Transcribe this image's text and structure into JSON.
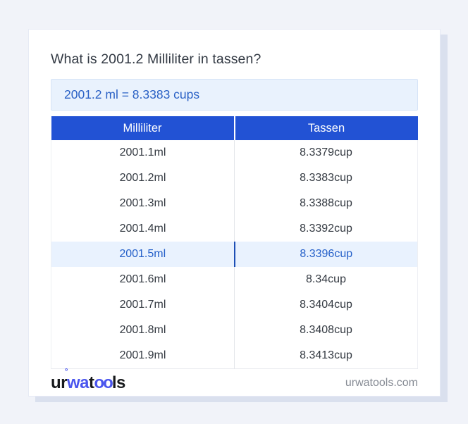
{
  "page": {
    "title": "What is 2001.2 Milliliter in tassen?",
    "result": "2001.2 ml = 8.3383 cups"
  },
  "table": {
    "headers": [
      "Milliliter",
      "Tassen"
    ],
    "rows": [
      {
        "ml": "2001.1ml",
        "cup": "8.3379cup"
      },
      {
        "ml": "2001.2ml",
        "cup": "8.3383cup"
      },
      {
        "ml": "2001.3ml",
        "cup": "8.3388cup"
      },
      {
        "ml": "2001.4ml",
        "cup": "8.3392cup"
      },
      {
        "ml": "2001.5ml",
        "cup": "8.3396cup"
      },
      {
        "ml": "2001.6ml",
        "cup": "8.34cup"
      },
      {
        "ml": "2001.7ml",
        "cup": "8.3404cup"
      },
      {
        "ml": "2001.8ml",
        "cup": "8.3408cup"
      },
      {
        "ml": "2001.9ml",
        "cup": "8.3413cup"
      }
    ],
    "highlighted_row_index": 4
  },
  "footer": {
    "logo": {
      "ur": "ur",
      "ring": "˚",
      "wa": "wa",
      "t": "t",
      "oo": "oo",
      "ls": "ls"
    },
    "domain": "urwatools.com"
  },
  "colors": {
    "header_blue": "#2252d4",
    "result_text_blue": "#2a61c5",
    "result_bg": "#e9f2fd",
    "highlight_bg": "#e9f2fe",
    "highlight_text": "#2560c9",
    "highlight_divider": "#1d4fb5",
    "logo_blue": "#4a55ee",
    "page_bg": "#f1f3f9",
    "card_shadow": "#dae0ee"
  }
}
